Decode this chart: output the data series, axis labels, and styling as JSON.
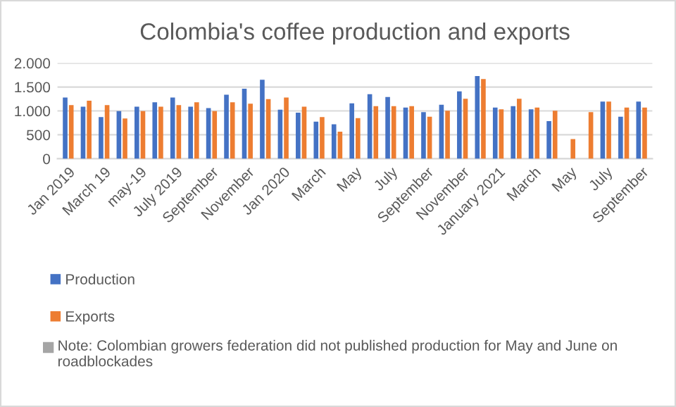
{
  "chart_data": {
    "type": "bar",
    "title": "Colombia's coffee production and exports",
    "categories": [
      "Jan 2019",
      null,
      "March 19",
      null,
      "may-19",
      null,
      "July 2019",
      null,
      "September",
      null,
      "November",
      null,
      "Jan 2020",
      null,
      "March",
      null,
      "May",
      null,
      "July",
      null,
      "September",
      null,
      "November",
      null,
      "January 2021",
      null,
      "March",
      null,
      "May",
      null,
      "July",
      null,
      "September"
    ],
    "series": [
      {
        "name": "Production",
        "color": "#4472c4",
        "values": [
          1280,
          1090,
          870,
          995,
          1090,
          1180,
          1280,
          1090,
          1060,
          1340,
          1465,
          1650,
          1025,
          965,
          775,
          720,
          1160,
          1350,
          1290,
          1070,
          975,
          1130,
          1410,
          1730,
          1070,
          1100,
          1035,
          785,
          null,
          null,
          1195,
          880,
          1195
        ]
      },
      {
        "name": "Exports",
        "color": "#ed7d31",
        "values": [
          1120,
          1215,
          1120,
          840,
          995,
          1090,
          1120,
          1180,
          995,
          1180,
          1150,
          1245,
          1280,
          1090,
          870,
          565,
          850,
          1100,
          1100,
          1100,
          880,
          1005,
          1255,
          1665,
          1035,
          1255,
          1070,
          1005,
          410,
          975,
          1195,
          1070,
          1070
        ]
      }
    ],
    "ylim": [
      0,
      2000
    ],
    "yticks": [
      0,
      500,
      {
        "value": 1000,
        "label": "1.000"
      },
      {
        "value": 1500,
        "label": "1.500"
      },
      {
        "value": 2000,
        "label": "2.000"
      }
    ],
    "grid": "y",
    "legend": "bottom",
    "annotations": [
      "Note: Colombian growers federation did not published production for May and June on roadblockades"
    ]
  }
}
